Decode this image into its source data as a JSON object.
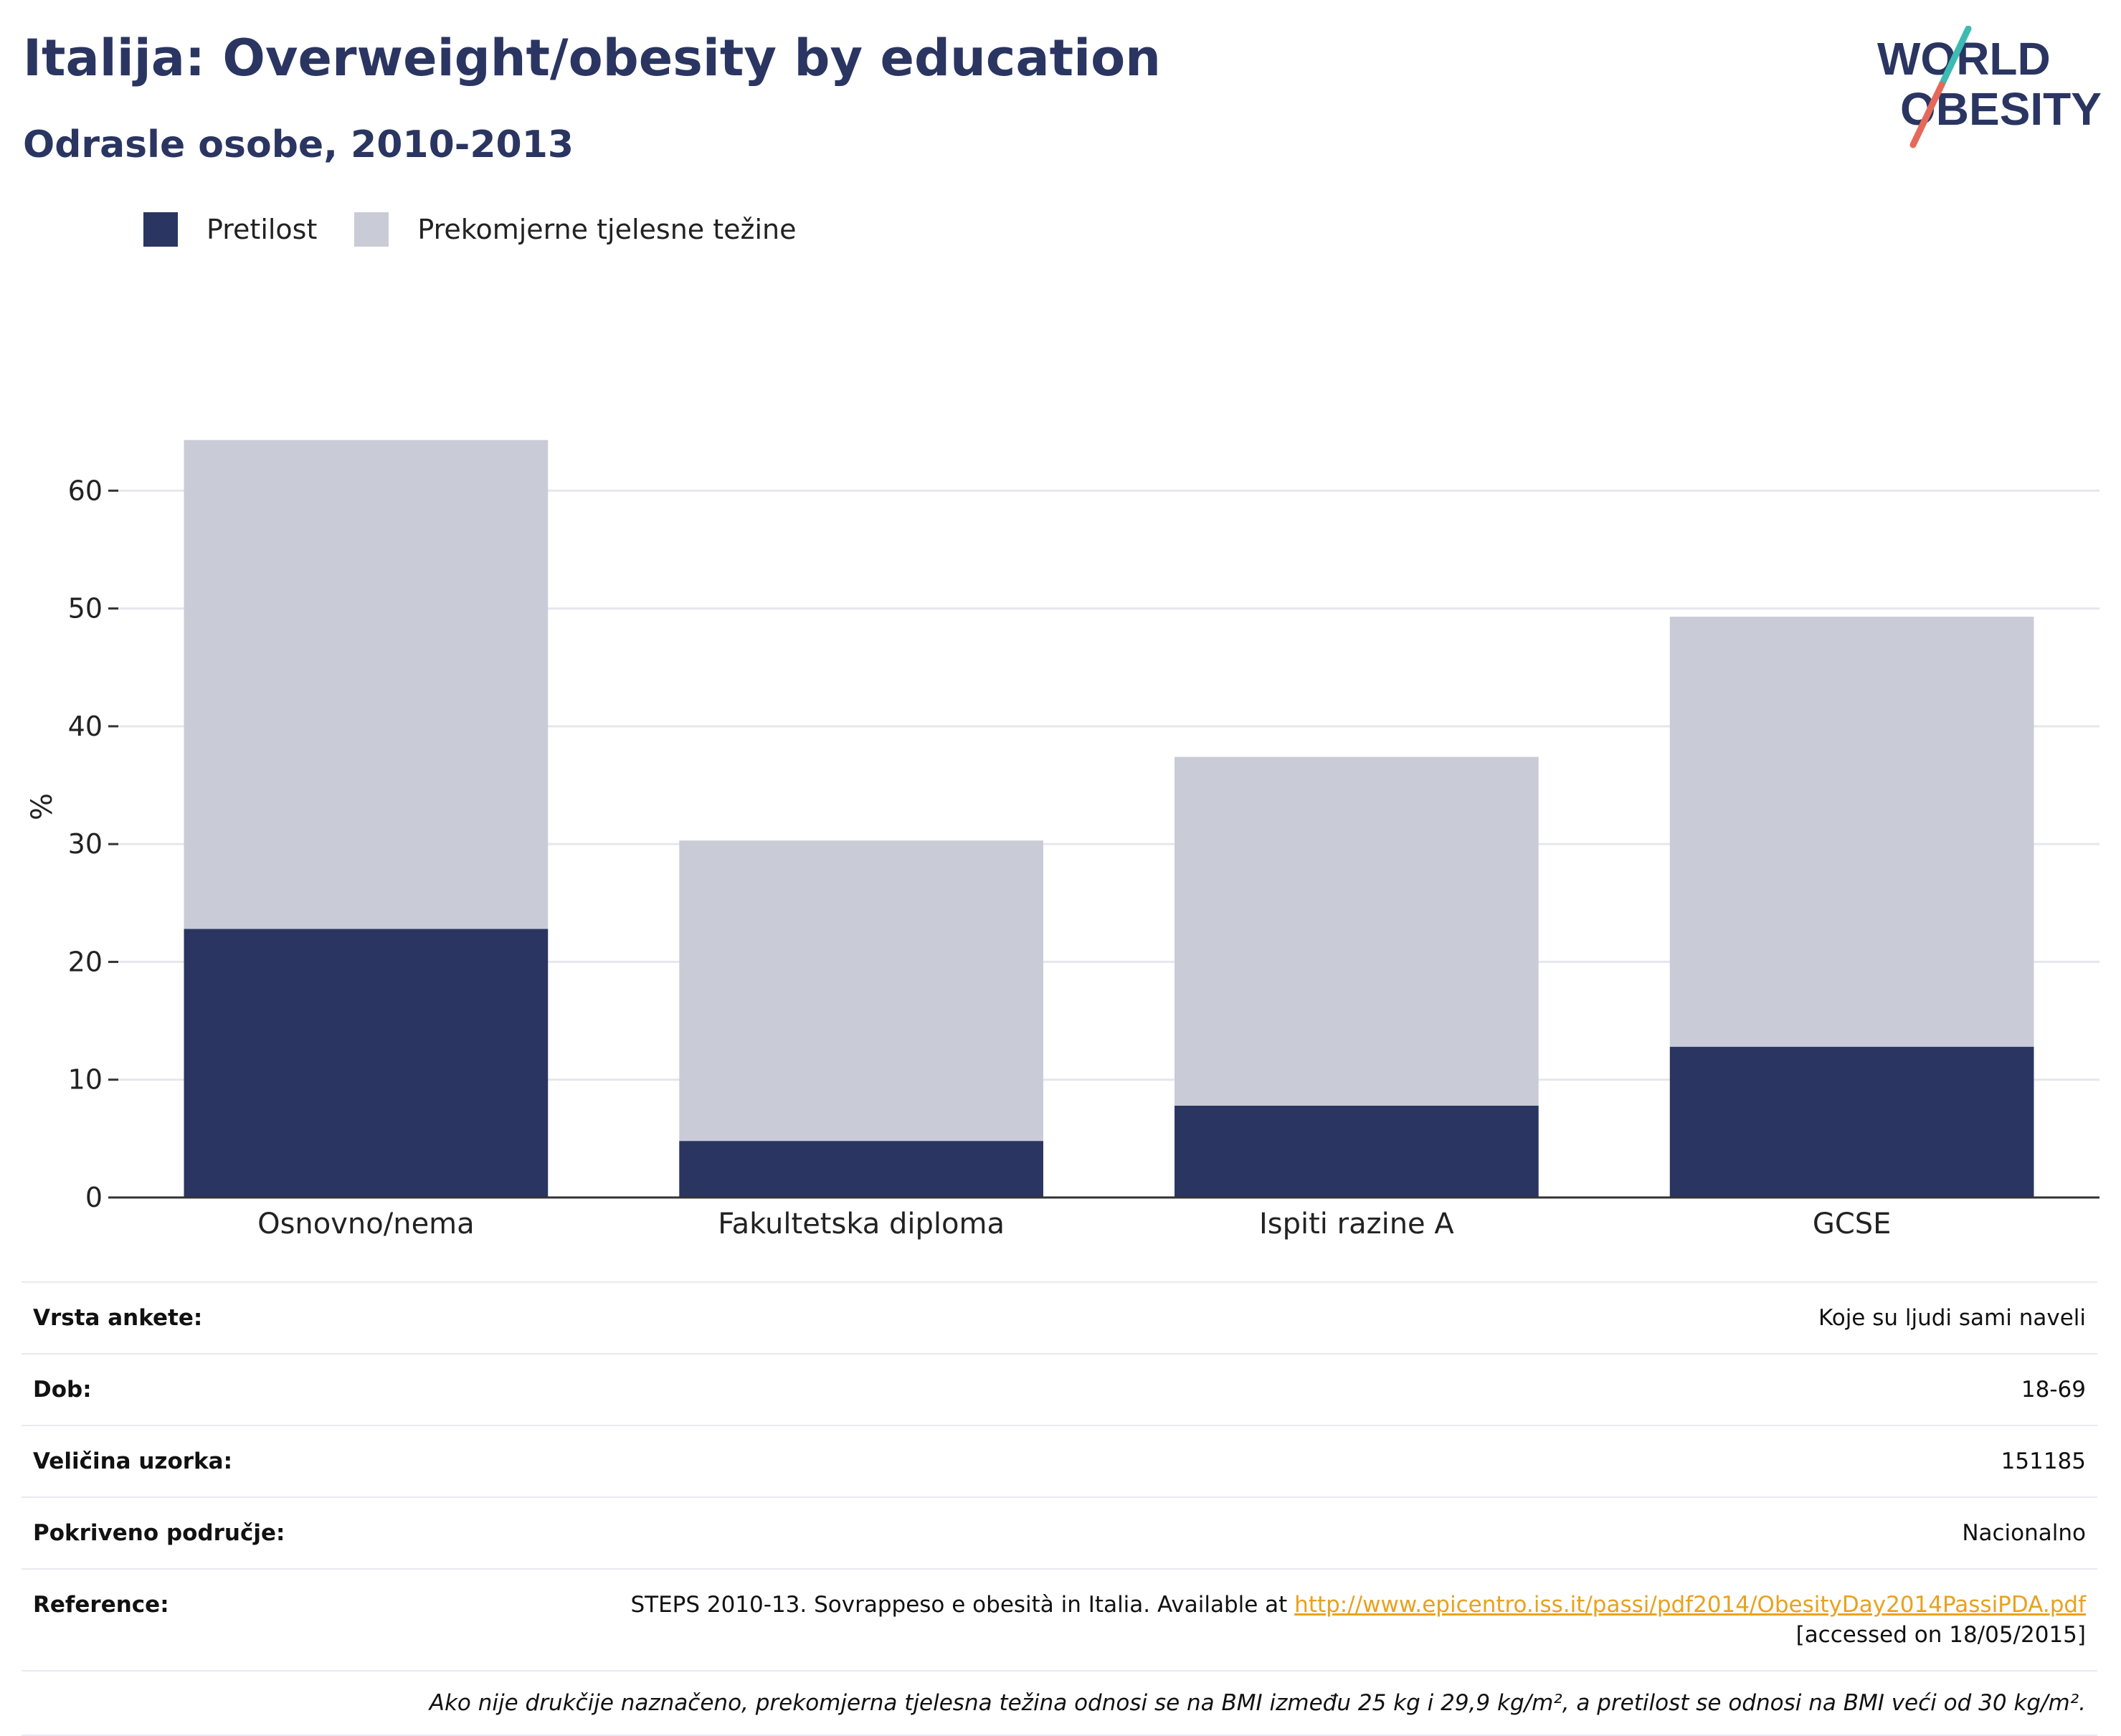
{
  "header": {
    "title": "Italija: Overweight/obesity by education",
    "subtitle": "Odrasle osobe, 2010-2013"
  },
  "logo": {
    "line1": "WORLD",
    "line2": "OBESITY",
    "colors": {
      "text": "#2a3561",
      "slash_top": "#3dbab3",
      "slash_bottom": "#e5695a"
    }
  },
  "colors": {
    "obesity": "#2a3561",
    "overweight": "#c9cbd7",
    "grid": "#e6e6ee",
    "axis": "#333333"
  },
  "chart_data": {
    "type": "bar",
    "stacked": true,
    "categories": [
      "Osnovno/nema",
      "Fakultetska diploma",
      "Ispiti razine A",
      "GCSE"
    ],
    "series": [
      {
        "name": "Pretilost",
        "color": "#2a3561",
        "values": [
          22.8,
          4.8,
          7.8,
          12.8
        ]
      },
      {
        "name": "Prekomjerne tjelesne težine",
        "color": "#c9cbd7",
        "values": [
          41.5,
          25.5,
          29.6,
          36.5
        ]
      }
    ],
    "ylabel": "%",
    "ylim": [
      0,
      70
    ],
    "yticks": [
      0,
      10,
      20,
      30,
      40,
      50,
      60
    ],
    "grid": true,
    "legend_position": "top-left"
  },
  "meta": {
    "survey_type_label": "Vrsta ankete:",
    "survey_type_value": "Koje su ljudi sami naveli",
    "age_label": "Dob:",
    "age_value": "18-69",
    "sample_label": "Veličina uzorka:",
    "sample_value": "151185",
    "coverage_label": "Pokriveno područje:",
    "coverage_value": "Nacionalno",
    "reference_label": "Reference:",
    "reference_text": "STEPS 2010-13. Sovrappeso e obesità in Italia. Available at ",
    "reference_link": "http://www.epicentro.iss.it/passi/pdf2014/ObesityDay2014PassiPDA.pdf",
    "reference_accessed": "[accessed on 18/05/2015]",
    "footnote": "Ako nije drukčije naznačeno, prekomjerna tjelesna težina odnosi se na BMI između 25 kg i 29,9 kg/m², a pretilost se odnosi na BMI veći od 30 kg/m²."
  }
}
